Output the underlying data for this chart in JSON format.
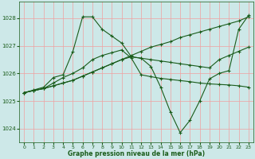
{
  "xlabel": "Graphe pression niveau de la mer (hPa)",
  "bg_color": "#cde8e8",
  "grid_color": "#f0a0a0",
  "line_color": "#1a5c1a",
  "ylim": [
    1023.5,
    1028.6
  ],
  "yticks": [
    1024,
    1025,
    1026,
    1027
  ],
  "ytick_extra": 1028,
  "xticks": [
    0,
    1,
    2,
    3,
    4,
    5,
    6,
    7,
    8,
    9,
    10,
    11,
    12,
    13,
    14,
    15,
    16,
    17,
    18,
    19,
    20,
    21,
    22,
    23
  ],
  "series": [
    [
      1025.3,
      1025.38,
      1025.45,
      1025.55,
      1025.65,
      1025.75,
      1025.9,
      1026.05,
      1026.2,
      1026.35,
      1026.5,
      1026.65,
      1026.8,
      1026.95,
      1027.05,
      1027.15,
      1027.3,
      1027.4,
      1027.5,
      1027.6,
      1027.7,
      1027.8,
      1027.9,
      1028.05
    ],
    [
      1025.3,
      1025.38,
      1025.45,
      1025.55,
      1025.65,
      1025.75,
      1025.9,
      1026.05,
      1026.2,
      1026.35,
      1026.5,
      1026.6,
      1026.55,
      1026.5,
      1026.45,
      1026.4,
      1026.35,
      1026.3,
      1026.25,
      1026.2,
      1026.5,
      1026.65,
      1026.8,
      1026.95
    ],
    [
      1025.3,
      1025.38,
      1025.45,
      1025.65,
      1025.85,
      1026.0,
      1026.2,
      1026.5,
      1026.65,
      1026.75,
      1026.85,
      1026.55,
      1025.95,
      1025.88,
      1025.82,
      1025.78,
      1025.74,
      1025.7,
      1025.65,
      1025.62,
      1025.6,
      1025.58,
      1025.55,
      1025.5
    ],
    [
      1025.3,
      1025.4,
      1025.5,
      1025.85,
      1025.95,
      1026.8,
      1028.05,
      1028.05,
      1027.6,
      1027.35,
      1027.1,
      1026.6,
      1026.55,
      1026.25,
      1025.5,
      1024.6,
      1023.85,
      1024.3,
      1025.0,
      1025.8,
      1026.0,
      1026.1,
      1027.6,
      1028.1
    ]
  ]
}
